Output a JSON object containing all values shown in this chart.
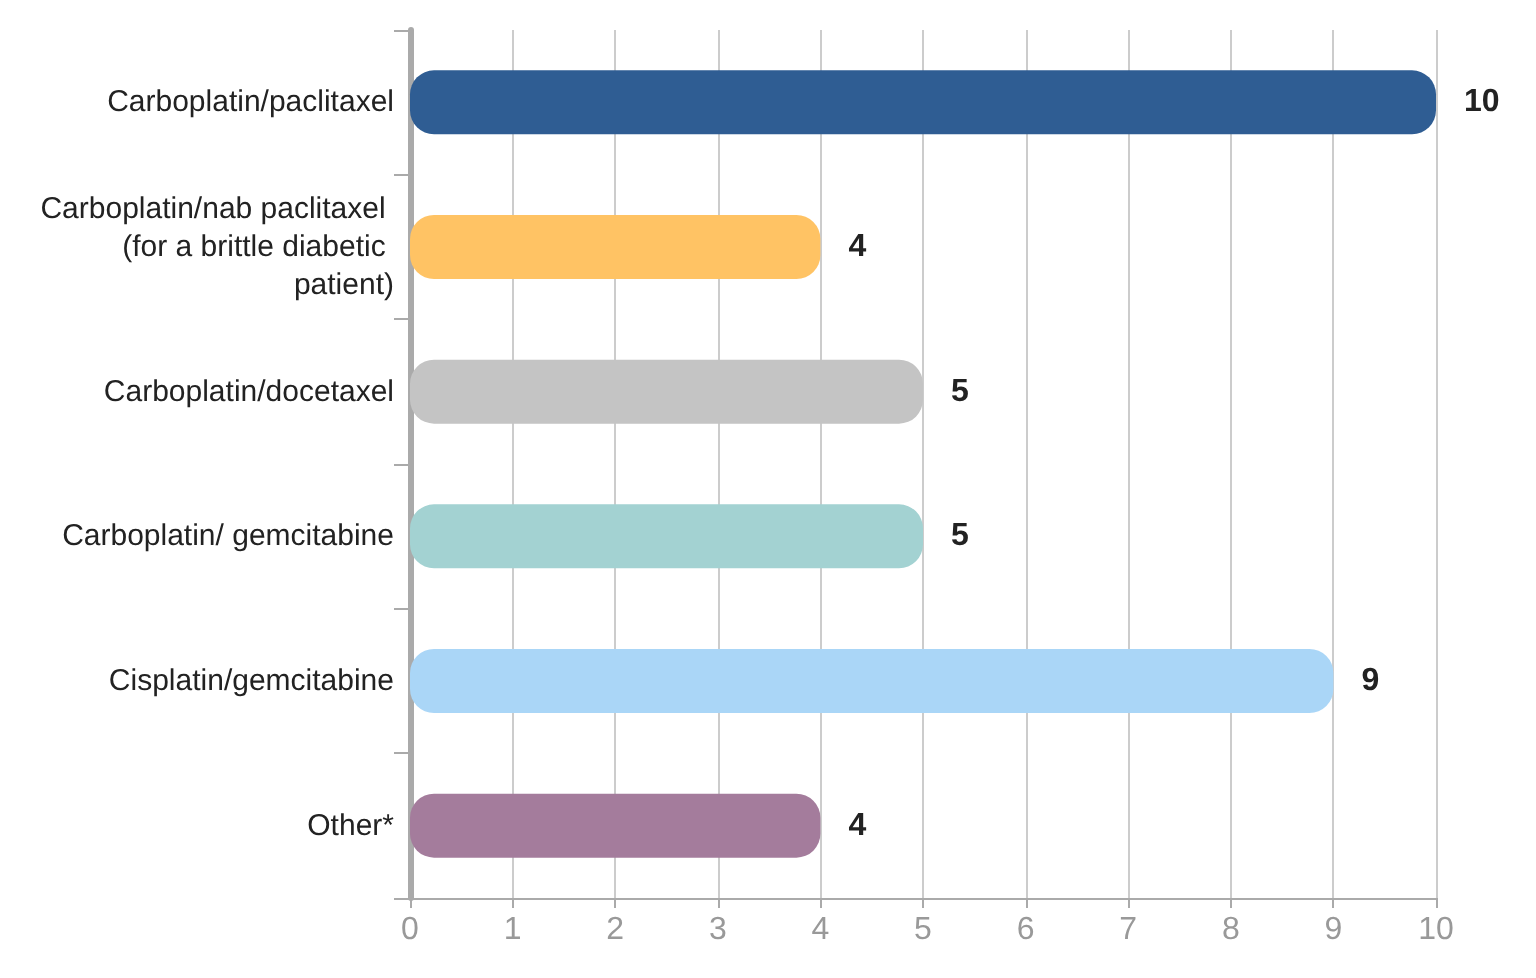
{
  "chart_data": {
    "type": "bar",
    "orientation": "horizontal",
    "categories": [
      "Carboplatin/paclitaxel",
      "Carboplatin/nab paclitaxel (for a brittle diabetic patient)",
      "Carboplatin/docetaxel",
      "Carboplatin/ gemcitabine",
      "Cisplatin/gemcitabine",
      "Other*"
    ],
    "values": [
      10,
      4,
      5,
      5,
      9,
      4
    ],
    "colors": [
      "#2f5d93",
      "#ffc364",
      "#c4c4c4",
      "#a3d2d2",
      "#aad6f7",
      "#a47c9c"
    ],
    "xlim": [
      0,
      10
    ],
    "xticks": [
      0,
      1,
      2,
      3,
      4,
      5,
      6,
      7,
      8,
      9,
      10
    ],
    "grid": "x",
    "data_labels": true
  }
}
